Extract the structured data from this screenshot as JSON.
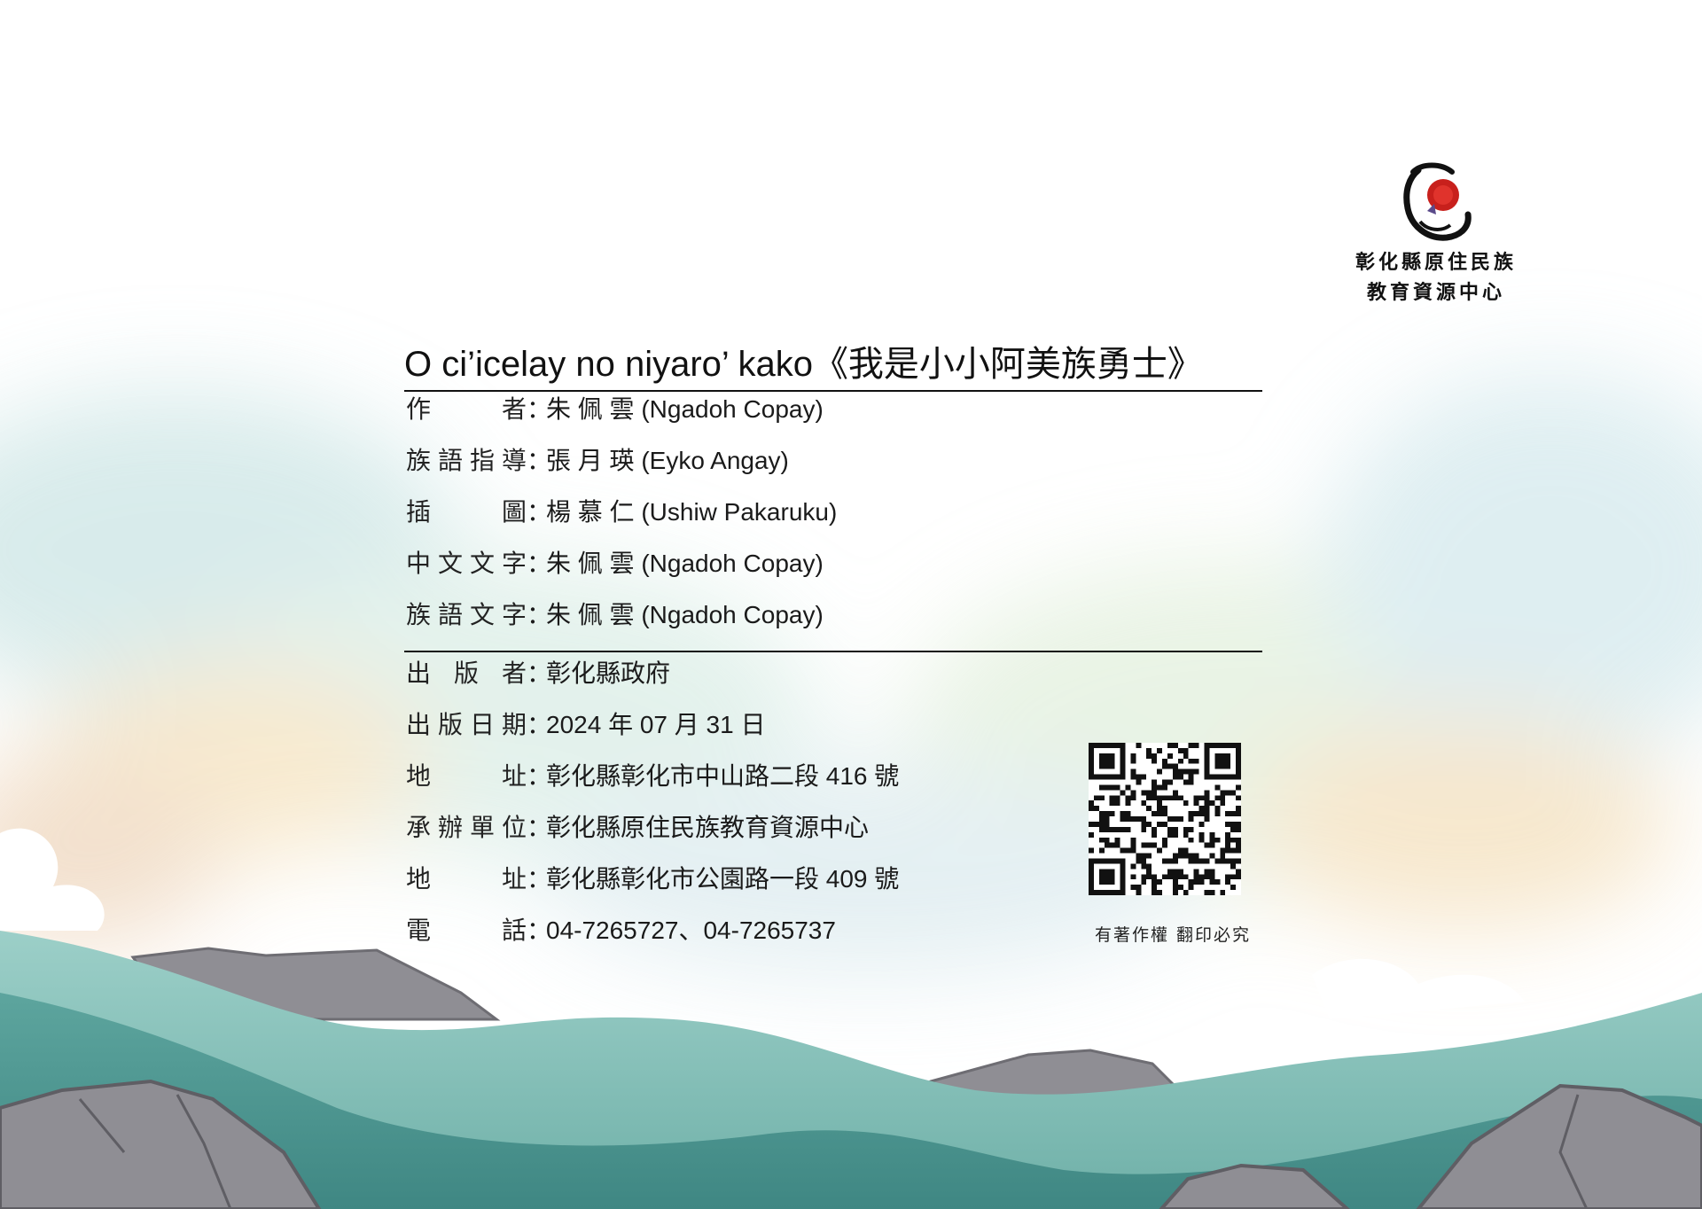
{
  "logo": {
    "line1": "彰化縣原住民族",
    "line2": "教育資源中心",
    "icon": "organization-logo-icon"
  },
  "title": "O ci’icelay no niyaro’ kako《我是小小阿美族勇士》",
  "credits": [
    {
      "label": [
        "作",
        "者"
      ],
      "value": "朱 佩 雲 (Ngadoh Copay)"
    },
    {
      "label": [
        "族",
        "語",
        "指",
        "導"
      ],
      "value": "張 月 瑛 (Eyko Angay)"
    },
    {
      "label": [
        "插",
        "圖"
      ],
      "value": "楊 慕 仁  (Ushiw Pakaruku)"
    },
    {
      "label": [
        "中",
        "文",
        "文",
        "字"
      ],
      "value": "朱 佩 雲 (Ngadoh Copay)"
    },
    {
      "label": [
        "族",
        "語",
        "文",
        "字"
      ],
      "value": "朱 佩 雲 (Ngadoh Copay)"
    }
  ],
  "publication": [
    {
      "label": [
        "出",
        "版",
        "者"
      ],
      "value": "彰化縣政府"
    },
    {
      "label": [
        "出",
        "版",
        "日",
        "期"
      ],
      "value": "2024 年 07 月 31 日"
    },
    {
      "label": [
        "地",
        "址"
      ],
      "value": "彰化縣彰化市中山路二段 416 號"
    },
    {
      "label": [
        "承",
        "辦",
        "單",
        "位"
      ],
      "value": "彰化縣原住民族教育資源中心"
    },
    {
      "label": [
        "地",
        "址"
      ],
      "value": "彰化縣彰化市公園路一段 409 號"
    },
    {
      "label": [
        "電",
        "話"
      ],
      "value": "04-7265727、04-7265737"
    }
  ],
  "separator": "：",
  "qr_icon": "qr-code-icon",
  "rights": "有著作權  翻印必究",
  "colors": {
    "teal_dark": "#4e958f",
    "teal_light": "#8cc3bd",
    "mountain_gray": "#8f8e94",
    "logo_red": "#c8201c"
  }
}
